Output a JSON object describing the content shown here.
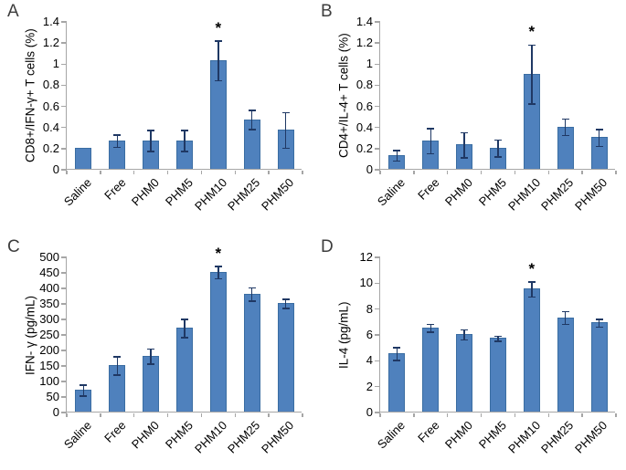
{
  "figure": {
    "background": "#ffffff",
    "bar_fill": "#4f81bd",
    "bar_border": "#3a6da2",
    "error_bar_color": "#1f3864",
    "axis_color": "#a6a6a6",
    "significance_marker": "*"
  },
  "chart_data": [
    {
      "type": "bar",
      "panel_label": "A",
      "title": "",
      "xlabel": "",
      "ylabel": "CD8+/IFN-γ+ T cells (%)",
      "categories": [
        "Saline",
        "Free",
        "PHM0",
        "PHM5",
        "PHM10",
        "PHM25",
        "PHM50"
      ],
      "values": [
        0.2,
        0.27,
        0.27,
        0.27,
        1.03,
        0.47,
        0.37
      ],
      "errors": [
        0,
        0.06,
        0.1,
        0.1,
        0.19,
        0.09,
        0.17
      ],
      "significant_category": "PHM10",
      "ylim": [
        0,
        1.4
      ],
      "yticks": [
        "0",
        "0.2",
        "0.4",
        "0.6",
        "0.8",
        "1",
        "1.2",
        "1.4"
      ],
      "grid": false,
      "legend": false,
      "xticklabel_rotation": -45
    },
    {
      "type": "bar",
      "panel_label": "B",
      "title": "",
      "xlabel": "",
      "ylabel": "CD4+/IL-4+ T cells (%)",
      "categories": [
        "Saline",
        "Free",
        "PHM0",
        "PHM5",
        "PHM10",
        "PHM25",
        "PHM50"
      ],
      "values": [
        0.13,
        0.27,
        0.23,
        0.2,
        0.9,
        0.4,
        0.3
      ],
      "errors": [
        0.05,
        0.12,
        0.12,
        0.08,
        0.28,
        0.08,
        0.08
      ],
      "significant_category": "PHM10",
      "ylim": [
        0,
        1.4
      ],
      "yticks": [
        "0",
        "0.2",
        "0.4",
        "0.6",
        "0.8",
        "1",
        "1.2",
        "1.4"
      ],
      "grid": false,
      "legend": false,
      "xticklabel_rotation": -45
    },
    {
      "type": "bar",
      "panel_label": "C",
      "title": "",
      "xlabel": "",
      "ylabel": "IFN- γ  (pg/mL)",
      "categories": [
        "Saline",
        "Free",
        "PHM0",
        "PHM5",
        "PHM10",
        "PHM25",
        "PHM50"
      ],
      "values": [
        70,
        150,
        180,
        270,
        450,
        380,
        350
      ],
      "errors": [
        18,
        30,
        25,
        30,
        20,
        22,
        15
      ],
      "significant_category": "PHM10",
      "ylim": [
        0,
        500
      ],
      "yticks": [
        "0",
        "50",
        "100",
        "150",
        "200",
        "250",
        "300",
        "350",
        "400",
        "450",
        "500"
      ],
      "grid": false,
      "legend": false,
      "xticklabel_rotation": -45
    },
    {
      "type": "bar",
      "panel_label": "D",
      "title": "",
      "xlabel": "",
      "ylabel": "IL-4 (pg/mL)",
      "categories": [
        "Saline",
        "Free",
        "PHM0",
        "PHM5",
        "PHM10",
        "PHM25",
        "PHM50"
      ],
      "values": [
        4.5,
        6.5,
        6.0,
        5.7,
        9.5,
        7.3,
        6.9
      ],
      "errors": [
        0.5,
        0.3,
        0.4,
        0.2,
        0.6,
        0.5,
        0.3
      ],
      "significant_category": "PHM10",
      "ylim": [
        0,
        12
      ],
      "yticks": [
        "0",
        "2",
        "4",
        "6",
        "8",
        "10",
        "12"
      ],
      "grid": false,
      "legend": false,
      "xticklabel_rotation": -45
    }
  ]
}
